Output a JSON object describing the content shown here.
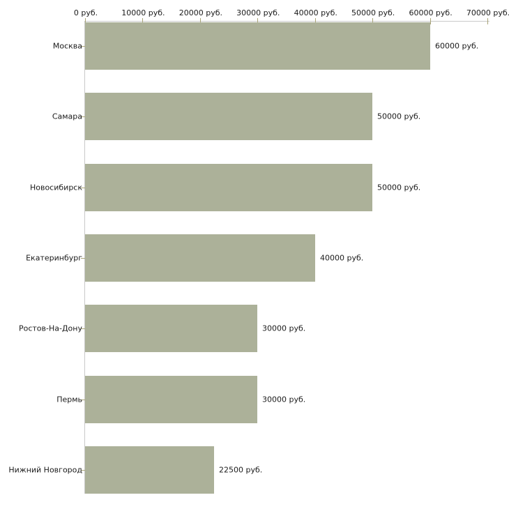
{
  "chart_data": {
    "type": "bar",
    "orientation": "horizontal",
    "title": "",
    "xlabel": "",
    "ylabel": "",
    "categories": [
      "Москва",
      "Самара",
      "Новосибирск",
      "Екатеринбург",
      "Ростов-На-Дону",
      "Пермь",
      "Нижний Новгород"
    ],
    "values": [
      60000,
      50000,
      50000,
      40000,
      30000,
      30000,
      22500
    ],
    "value_labels": [
      "60000 руб.",
      "50000 руб.",
      "50000 руб.",
      "40000 руб.",
      "30000 руб.",
      "30000 руб.",
      "22500 руб."
    ],
    "x_tick_values": [
      0,
      10000,
      20000,
      30000,
      40000,
      50000,
      60000,
      70000
    ],
    "x_tick_labels": [
      "0 руб.",
      "10000 руб.",
      "20000 руб.",
      "30000 руб.",
      "40000 руб.",
      "50000 руб.",
      "60000 руб.",
      "70000 руб."
    ],
    "xlim": [
      0,
      70000
    ],
    "grid": false,
    "legend": false,
    "colors": {
      "bar_fill": "#acb199",
      "axis_line": "#c9c9c9",
      "tick_mark": "#a9a477",
      "text": "#1a1a1a",
      "background": "#ffffff"
    }
  }
}
